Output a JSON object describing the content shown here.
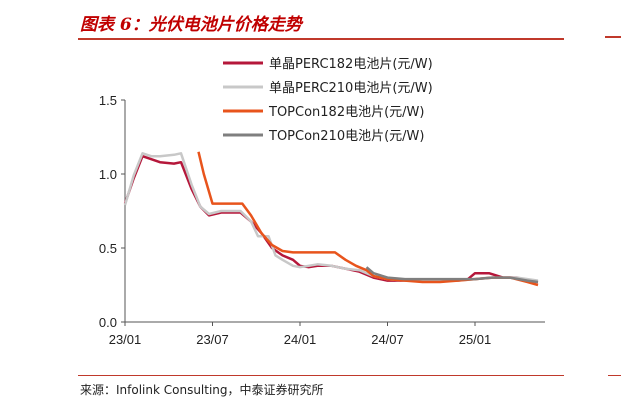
{
  "header": {
    "title": "图表 6：光伏电池片价格走势"
  },
  "source": "来源：Infolink Consulting，中泰证券研究所",
  "chart_data": {
    "type": "line",
    "title": "",
    "xlabel": "",
    "ylabel": "",
    "ylim": [
      0,
      1.5
    ],
    "yticks": [
      "0.0",
      "0.5",
      "1.0",
      "1.5"
    ],
    "xticks": [
      "23/01",
      "23/07",
      "24/01",
      "24/07",
      "25/01"
    ],
    "x_range": [
      "2023-01",
      "2025-05"
    ],
    "grid": false,
    "legend_position": "top-right",
    "series": [
      {
        "name": "单晶PERC182电池片(元/W)",
        "color": "#b5173a",
        "x": [
          2023.0,
          2023.05,
          2023.1,
          2023.15,
          2023.2,
          2023.28,
          2023.32,
          2023.38,
          2023.43,
          2023.48,
          2023.55,
          2023.6,
          2023.66,
          2023.72,
          2023.78,
          2023.84,
          2023.9,
          2023.96,
          2024.0,
          2024.05,
          2024.1,
          2024.18,
          2024.26,
          2024.34,
          2024.42,
          2024.5,
          2024.6,
          2024.7,
          2024.8,
          2024.9,
          2024.96,
          2025.0,
          2025.08,
          2025.16,
          2025.24,
          2025.3,
          2025.36
        ],
        "y": [
          0.8,
          0.97,
          1.12,
          1.1,
          1.08,
          1.07,
          1.08,
          0.9,
          0.78,
          0.72,
          0.74,
          0.74,
          0.74,
          0.68,
          0.6,
          0.5,
          0.45,
          0.42,
          0.38,
          0.37,
          0.38,
          0.38,
          0.36,
          0.34,
          0.3,
          0.28,
          0.28,
          0.28,
          0.28,
          0.28,
          0.29,
          0.33,
          0.33,
          0.3,
          0.3,
          0.28,
          0.27
        ]
      },
      {
        "name": "单晶PERC210电池片(元/W)",
        "color": "#c8c8c8",
        "x": [
          2023.0,
          2023.05,
          2023.1,
          2023.15,
          2023.2,
          2023.28,
          2023.32,
          2023.38,
          2023.43,
          2023.48,
          2023.55,
          2023.6,
          2023.66,
          2023.72,
          2023.76,
          2023.82,
          2023.86,
          2023.9,
          2023.96,
          2024.0,
          2024.05,
          2024.1,
          2024.18,
          2024.26,
          2024.34,
          2024.42,
          2024.5,
          2024.6,
          2024.7,
          2024.8,
          2024.9,
          2025.0,
          2025.08,
          2025.16,
          2025.24,
          2025.3,
          2025.36
        ],
        "y": [
          0.79,
          0.99,
          1.14,
          1.12,
          1.12,
          1.13,
          1.14,
          0.93,
          0.78,
          0.73,
          0.75,
          0.75,
          0.75,
          0.68,
          0.58,
          0.58,
          0.45,
          0.42,
          0.38,
          0.37,
          0.38,
          0.39,
          0.38,
          0.36,
          0.35,
          0.31,
          0.29,
          0.28,
          0.28,
          0.28,
          0.28,
          0.29,
          0.3,
          0.3,
          0.3,
          0.29,
          0.28
        ]
      },
      {
        "name": "TOPCon182电池片(元/W)",
        "color": "#e8541c",
        "x": [
          2023.42,
          2023.45,
          2023.5,
          2023.55,
          2023.6,
          2023.67,
          2023.72,
          2023.78,
          2023.84,
          2023.9,
          2023.96,
          2024.0,
          2024.05,
          2024.1,
          2024.2,
          2024.26,
          2024.32,
          2024.38,
          2024.42,
          2024.5,
          2024.6,
          2024.7,
          2024.8,
          2024.9,
          2025.0,
          2025.1,
          2025.2,
          2025.3,
          2025.36
        ],
        "y": [
          1.15,
          1.0,
          0.8,
          0.8,
          0.8,
          0.8,
          0.72,
          0.6,
          0.52,
          0.48,
          0.47,
          0.47,
          0.47,
          0.47,
          0.47,
          0.42,
          0.38,
          0.35,
          0.31,
          0.29,
          0.28,
          0.27,
          0.27,
          0.28,
          0.29,
          0.3,
          0.3,
          0.27,
          0.25
        ]
      },
      {
        "name": "TOPCon210电池片(元/W)",
        "color": "#7f7f7f",
        "x": [
          2024.38,
          2024.42,
          2024.5,
          2024.6,
          2024.7,
          2024.8,
          2024.9,
          2025.0,
          2025.1,
          2025.2,
          2025.3,
          2025.36
        ],
        "y": [
          0.37,
          0.33,
          0.3,
          0.29,
          0.29,
          0.29,
          0.29,
          0.29,
          0.3,
          0.3,
          0.28,
          0.27
        ]
      }
    ]
  }
}
